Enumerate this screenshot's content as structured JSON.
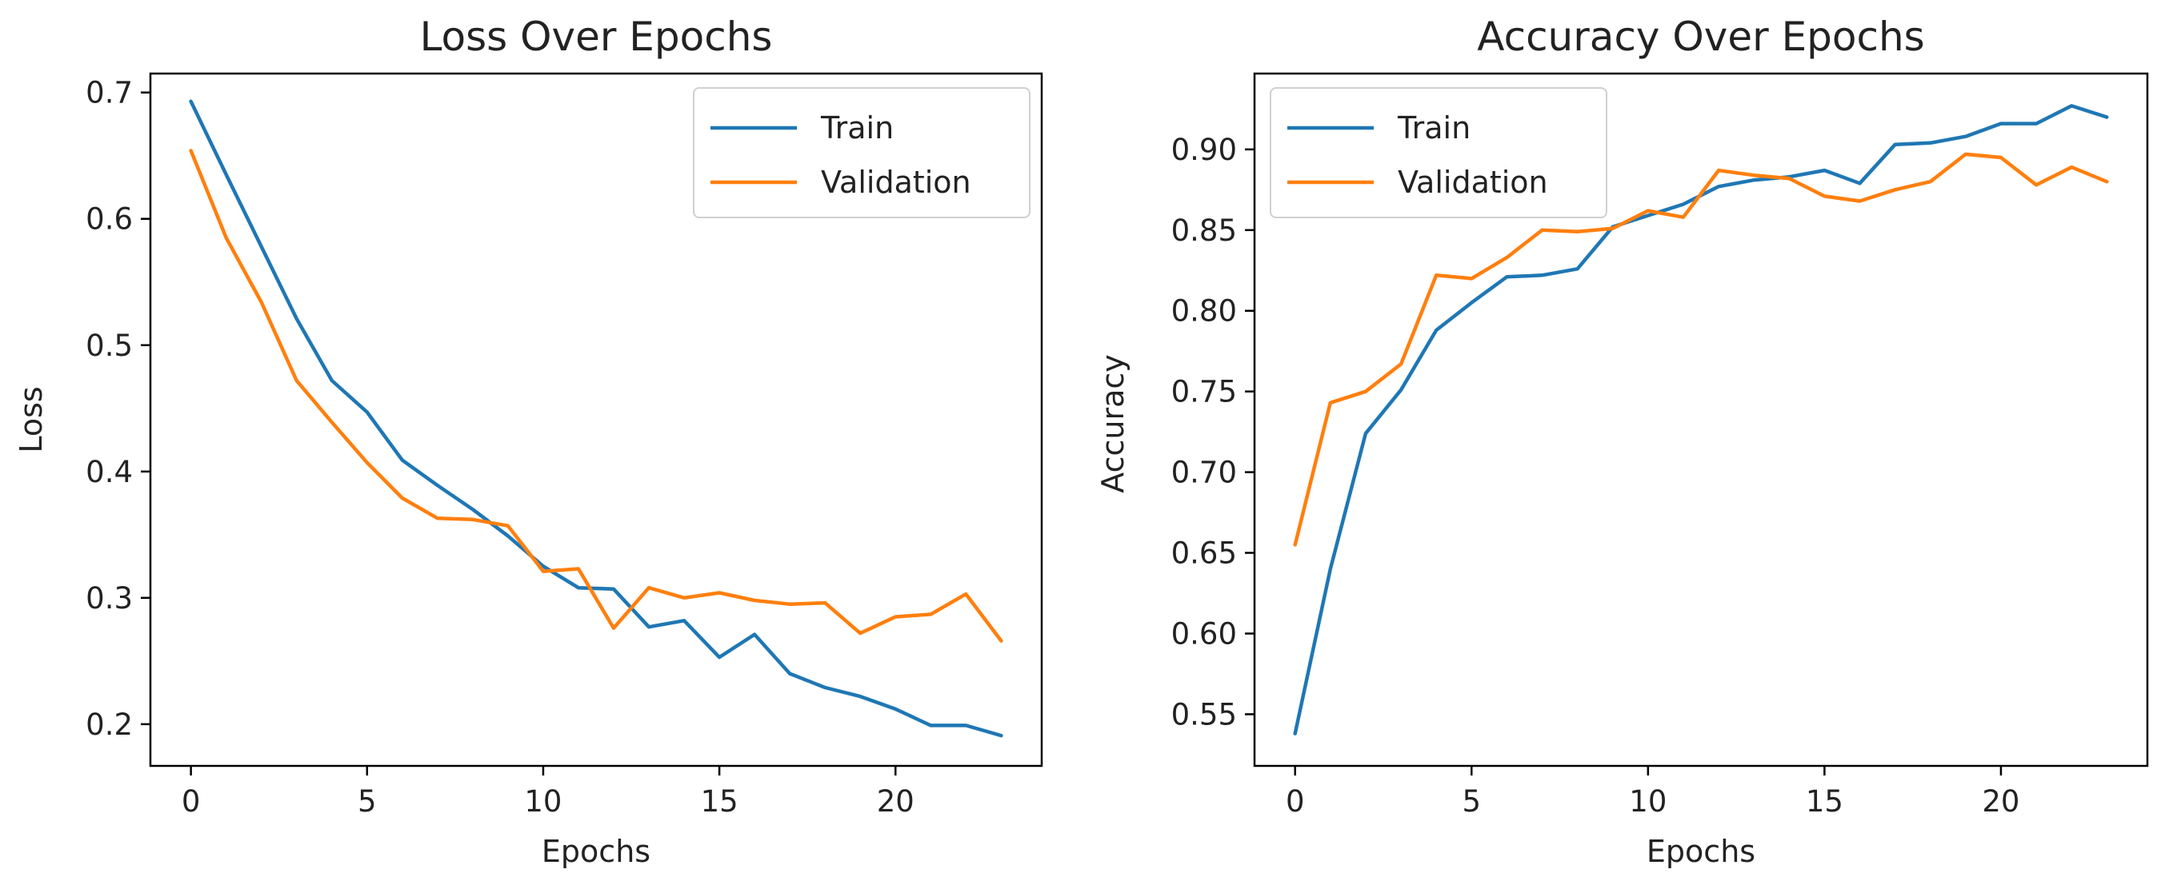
{
  "colors": {
    "train": "#1f77b4",
    "validation": "#ff7f0e"
  },
  "chart_data": [
    {
      "type": "line",
      "title": "Loss Over Epochs",
      "xlabel": "Epochs",
      "ylabel": "Loss",
      "xlim": [
        -1.15,
        24.15
      ],
      "ylim": [
        0.167,
        0.715
      ],
      "xticks": [
        0,
        5,
        10,
        15,
        20
      ],
      "yticks": [
        0.2,
        0.3,
        0.4,
        0.5,
        0.6,
        0.7
      ],
      "ytick_labels": [
        "0.2",
        "0.3",
        "0.4",
        "0.5",
        "0.6",
        "0.7"
      ],
      "legend_position": "top-right",
      "x": [
        0,
        1,
        2,
        3,
        4,
        5,
        6,
        7,
        8,
        9,
        10,
        11,
        12,
        13,
        14,
        15,
        16,
        17,
        18,
        19,
        20,
        21,
        22,
        23
      ],
      "series": [
        {
          "name": "Train",
          "color_key": "train",
          "values": [
            0.693,
            0.635,
            0.578,
            0.521,
            0.472,
            0.447,
            0.409,
            0.389,
            0.37,
            0.349,
            0.325,
            0.308,
            0.307,
            0.277,
            0.282,
            0.253,
            0.271,
            0.24,
            0.229,
            0.222,
            0.212,
            0.199,
            0.199,
            0.191
          ]
        },
        {
          "name": "Validation",
          "color_key": "validation",
          "values": [
            0.654,
            0.585,
            0.534,
            0.472,
            0.439,
            0.407,
            0.379,
            0.363,
            0.362,
            0.357,
            0.321,
            0.323,
            0.276,
            0.308,
            0.3,
            0.304,
            0.298,
            0.295,
            0.296,
            0.272,
            0.285,
            0.287,
            0.303,
            0.266
          ]
        }
      ]
    },
    {
      "type": "line",
      "title": "Accuracy Over Epochs",
      "xlabel": "Epochs",
      "ylabel": "Accuracy",
      "xlim": [
        -1.15,
        24.15
      ],
      "ylim": [
        0.518,
        0.947
      ],
      "xticks": [
        0,
        5,
        10,
        15,
        20
      ],
      "yticks": [
        0.55,
        0.6,
        0.65,
        0.7,
        0.75,
        0.8,
        0.85,
        0.9
      ],
      "ytick_labels": [
        "0.55",
        "0.60",
        "0.65",
        "0.70",
        "0.75",
        "0.80",
        "0.85",
        "0.90"
      ],
      "legend_position": "top-left",
      "x": [
        0,
        1,
        2,
        3,
        4,
        5,
        6,
        7,
        8,
        9,
        10,
        11,
        12,
        13,
        14,
        15,
        16,
        17,
        18,
        19,
        20,
        21,
        22,
        23
      ],
      "series": [
        {
          "name": "Train",
          "color_key": "train",
          "values": [
            0.538,
            0.64,
            0.724,
            0.751,
            0.788,
            0.805,
            0.821,
            0.822,
            0.826,
            0.852,
            0.859,
            0.866,
            0.877,
            0.881,
            0.883,
            0.887,
            0.879,
            0.903,
            0.904,
            0.908,
            0.916,
            0.916,
            0.927,
            0.92
          ]
        },
        {
          "name": "Validation",
          "color_key": "validation",
          "values": [
            0.655,
            0.743,
            0.75,
            0.767,
            0.822,
            0.82,
            0.833,
            0.85,
            0.849,
            0.851,
            0.862,
            0.858,
            0.887,
            0.884,
            0.882,
            0.871,
            0.868,
            0.875,
            0.88,
            0.897,
            0.895,
            0.878,
            0.889,
            0.88
          ]
        }
      ]
    }
  ]
}
